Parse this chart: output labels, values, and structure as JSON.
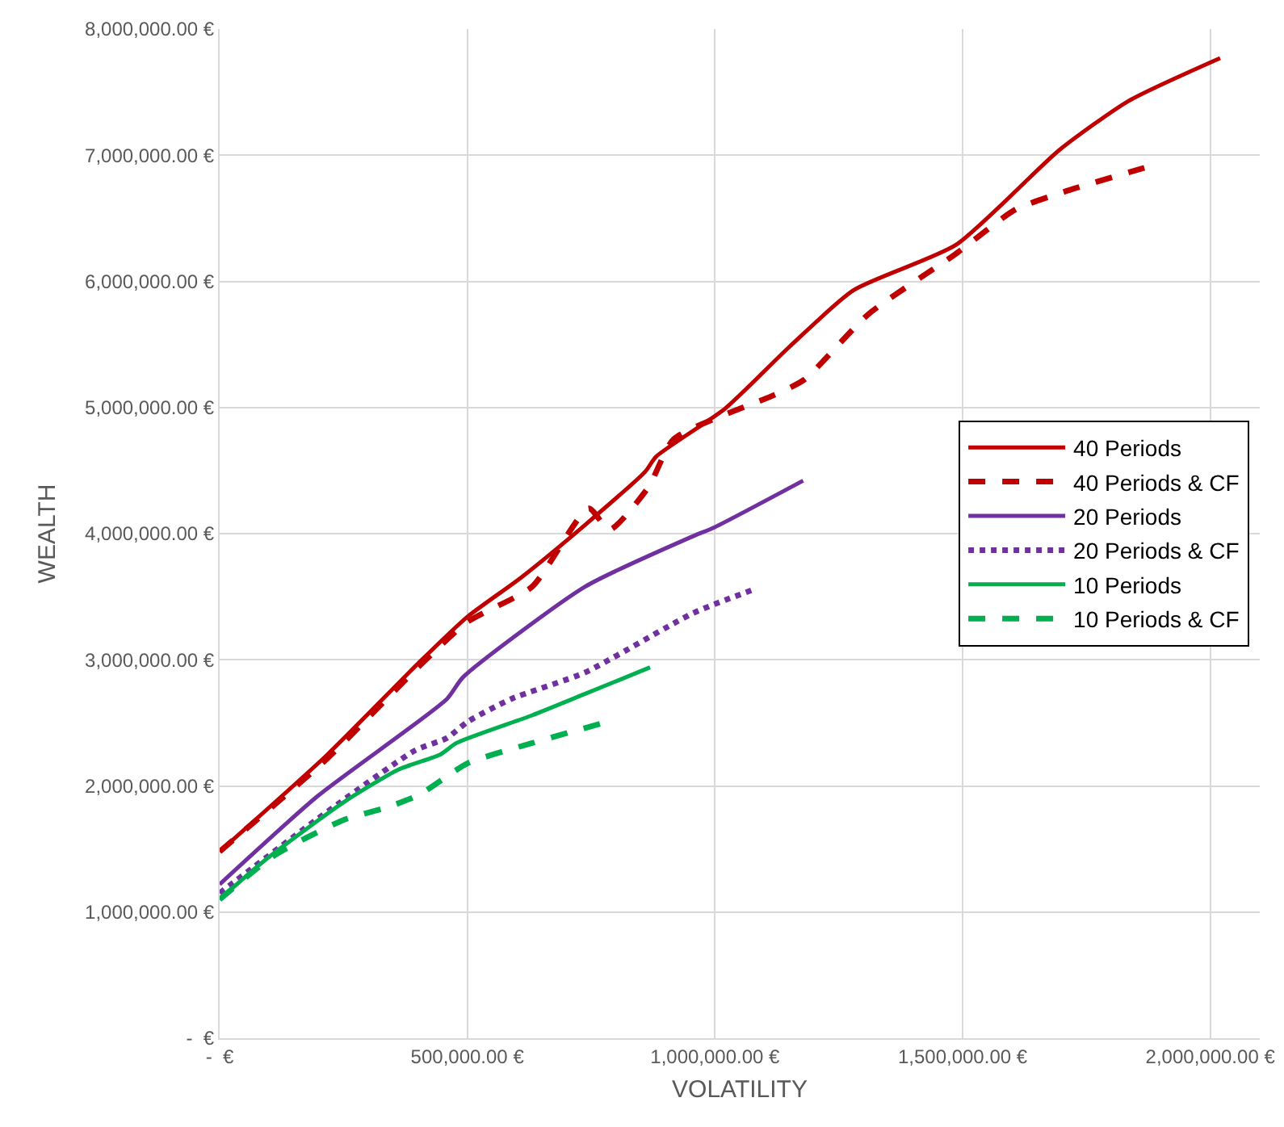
{
  "chart_data": {
    "type": "line",
    "xlabel": "VOLATILITY",
    "ylabel": "WEALTH",
    "xlim": [
      0,
      2100000
    ],
    "xticks": [
      {
        "value": 0,
        "label": "-  €"
      },
      {
        "value": 500000,
        "label": "500,000.00 €"
      },
      {
        "value": 1000000,
        "label": "1,000,000.00 €"
      },
      {
        "value": 1500000,
        "label": "1,500,000.00 €"
      },
      {
        "value": 2000000,
        "label": "2,000,000.00 €"
      }
    ],
    "ylim": [
      0,
      8000000
    ],
    "yticks": [
      {
        "value": 0,
        "label": "-  €"
      },
      {
        "value": 1000000,
        "label": "1,000,000.00 €"
      },
      {
        "value": 2000000,
        "label": "2,000,000.00 €"
      },
      {
        "value": 3000000,
        "label": "3,000,000.00 €"
      },
      {
        "value": 4000000,
        "label": "4,000,000.00 €"
      },
      {
        "value": 5000000,
        "label": "5,000,000.00 €"
      },
      {
        "value": 6000000,
        "label": "6,000,000.00 €"
      },
      {
        "value": 7000000,
        "label": "7,000,000.00 €"
      },
      {
        "value": 8000000,
        "label": "8,000,000.00 €"
      }
    ],
    "grid": true,
    "legend": "right",
    "marker": "none",
    "series": [
      {
        "name": "40 Periods",
        "color": "#c00000",
        "line_style": "solid",
        "x": [
          0,
          218000,
          403000,
          500000,
          608000,
          738000,
          859000,
          881000,
          1020000,
          1150000,
          1280000,
          1487000,
          1695000,
          1835000,
          2020000
        ],
        "values": [
          1480000,
          2250000,
          2980000,
          3340000,
          3650000,
          4070000,
          4490000,
          4610000,
          4990000,
          5480000,
          5930000,
          6290000,
          7040000,
          7430000,
          7770000
        ]
      },
      {
        "name": "40 Periods & CF",
        "color": "#c00000",
        "line_style": "dashed",
        "x": [
          0,
          218000,
          403000,
          500000,
          631000,
          745000,
          787000,
          866000,
          917000,
          1120000,
          1180000,
          1310000,
          1487000,
          1607000,
          1705000,
          1867000
        ],
        "values": [
          1480000,
          2220000,
          2950000,
          3300000,
          3580000,
          4200000,
          4030000,
          4370000,
          4750000,
          5100000,
          5220000,
          5740000,
          6220000,
          6570000,
          6710000,
          6900000
        ]
      },
      {
        "name": "20 Periods",
        "color": "#7030a0",
        "line_style": "solid",
        "x": [
          0,
          198000,
          459000,
          491000,
          738000,
          956000,
          999000,
          1178000
        ],
        "values": [
          1220000,
          1920000,
          2690000,
          2860000,
          3580000,
          3980000,
          4050000,
          4420000
        ]
      },
      {
        "name": "20 Periods & CF",
        "color": "#7030a0",
        "line_style": "dotted",
        "x": [
          0,
          198000,
          394000,
          459000,
          501000,
          589000,
          738000,
          956000,
          1080000
        ],
        "values": [
          1150000,
          1740000,
          2280000,
          2380000,
          2510000,
          2690000,
          2900000,
          3370000,
          3560000
        ]
      },
      {
        "name": "10 Periods",
        "color": "#00b050",
        "line_style": "solid",
        "x": [
          0,
          88000,
          250000,
          361000,
          446000,
          478000,
          631000,
          738000,
          869000
        ],
        "values": [
          1100000,
          1400000,
          1870000,
          2130000,
          2250000,
          2340000,
          2560000,
          2730000,
          2940000
        ]
      },
      {
        "name": "10 Periods & CF",
        "color": "#00b050",
        "line_style": "dashed",
        "x": [
          0,
          111000,
          250000,
          338000,
          403000,
          501000,
          631000,
          784000
        ],
        "values": [
          1100000,
          1450000,
          1730000,
          1830000,
          1930000,
          2180000,
          2340000,
          2510000
        ]
      }
    ]
  }
}
